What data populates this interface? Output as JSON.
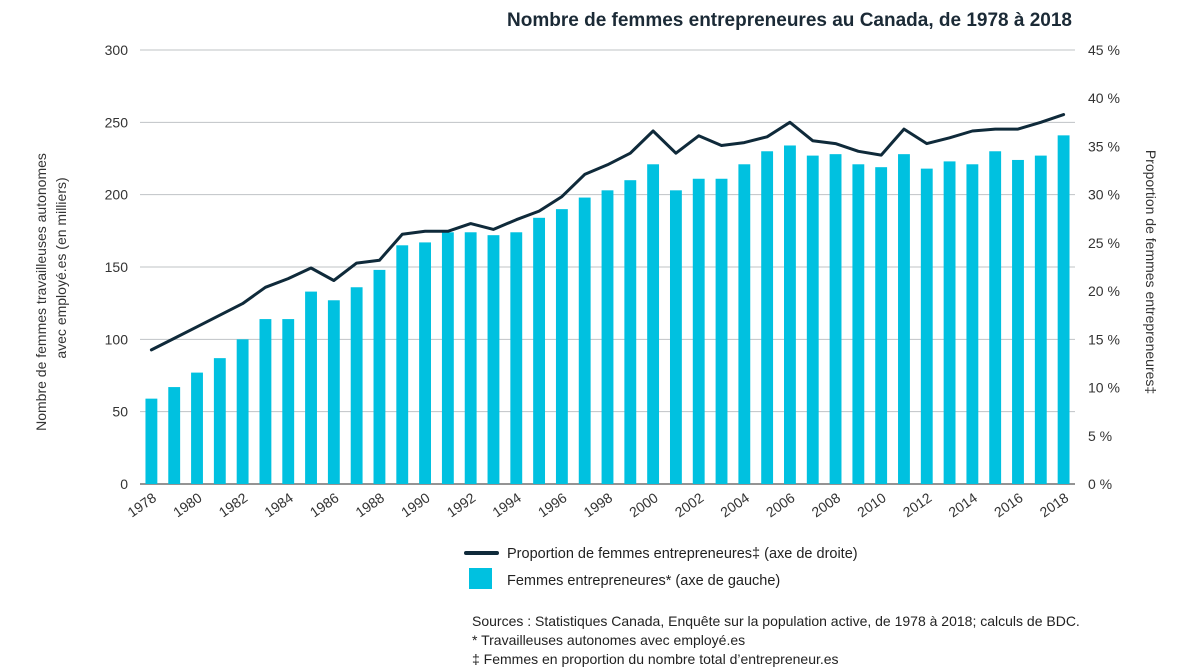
{
  "chart_data": {
    "type": "bar+line",
    "title": "Nombre de femmes entrepreneures au Canada, de 1978 à 2018",
    "x": [
      1978,
      1979,
      1980,
      1981,
      1982,
      1983,
      1984,
      1985,
      1986,
      1987,
      1988,
      1989,
      1990,
      1991,
      1992,
      1993,
      1994,
      1995,
      1996,
      1997,
      1998,
      1999,
      2000,
      2001,
      2002,
      2003,
      2004,
      2005,
      2006,
      2007,
      2008,
      2009,
      2010,
      2011,
      2012,
      2013,
      2014,
      2015,
      2016,
      2017,
      2018
    ],
    "x_tick_labels": [
      "1978",
      "1980",
      "1982",
      "1984",
      "1986",
      "1988",
      "1990",
      "1992",
      "1994",
      "1996",
      "1998",
      "2000",
      "2002",
      "2004",
      "2006",
      "2008",
      "2010",
      "2012",
      "2014",
      "2016",
      "2018"
    ],
    "ylabel_left": "Nombre de femmes travailleuses autonomes avec employé.es (en milliers)",
    "ylabel_left_lines": [
      "Nombre de femmes travailleuses autonomes",
      "avec employé.es (en milliers)"
    ],
    "ylabel_right": "Proportion de femmes entrepreneures‡",
    "ylim_left": [
      0,
      300
    ],
    "ylim_right": [
      0,
      45
    ],
    "y_left_ticks": [
      "0",
      "50",
      "100",
      "150",
      "200",
      "250",
      "300"
    ],
    "y_right_ticks": [
      "0 %",
      "5 %",
      "10 %",
      "15 %",
      "20 %",
      "25 %",
      "30 %",
      "35 %",
      "40 %",
      "45 %"
    ],
    "grid": true,
    "series": [
      {
        "name": "Femmes entrepreneures* (axe de gauche)",
        "type": "bar",
        "axis": "left",
        "color": "#00c1e0",
        "values": [
          59,
          67,
          77,
          87,
          100,
          114,
          114,
          133,
          127,
          136,
          148,
          165,
          167,
          174,
          174,
          172,
          174,
          184,
          190,
          198,
          203,
          210,
          221,
          203,
          211,
          211,
          221,
          230,
          234,
          227,
          228,
          221,
          219,
          228,
          218,
          223,
          221,
          230,
          224,
          227,
          241
        ]
      },
      {
        "name": "Proportion de femmes entrepreneures‡ (axe de droite)",
        "type": "line",
        "axis": "right",
        "color": "#0f2a3a",
        "values": [
          13.9,
          15.1,
          16.3,
          17.5,
          18.7,
          20.4,
          21.3,
          22.4,
          21.1,
          22.9,
          23.2,
          25.9,
          26.2,
          26.2,
          27.0,
          26.4,
          27.4,
          28.3,
          29.8,
          32.1,
          33.1,
          34.3,
          36.6,
          34.3,
          36.1,
          35.1,
          35.4,
          36.0,
          37.5,
          35.6,
          35.3,
          34.5,
          34.1,
          36.8,
          35.3,
          35.9,
          36.6,
          36.8,
          36.8,
          37.5,
          38.3
        ]
      }
    ],
    "legend": "bottom-center",
    "legend_entries": [
      "Proportion de femmes entrepreneures‡ (axe de droite)",
      "Femmes entrepreneures* (axe de gauche)"
    ]
  },
  "sources": [
    "Sources : Statistiques Canada, Enquête sur la population active, de 1978 à 2018; calculs de BDC.",
    "* Travailleuses autonomes avec employé.es",
    "‡ Femmes en proportion du nombre total d’entrepreneur.es"
  ],
  "colors": {
    "bar": "#00c1e0",
    "line": "#0f2a3a",
    "grid": "#bfc3c6",
    "axis": "#555555"
  }
}
